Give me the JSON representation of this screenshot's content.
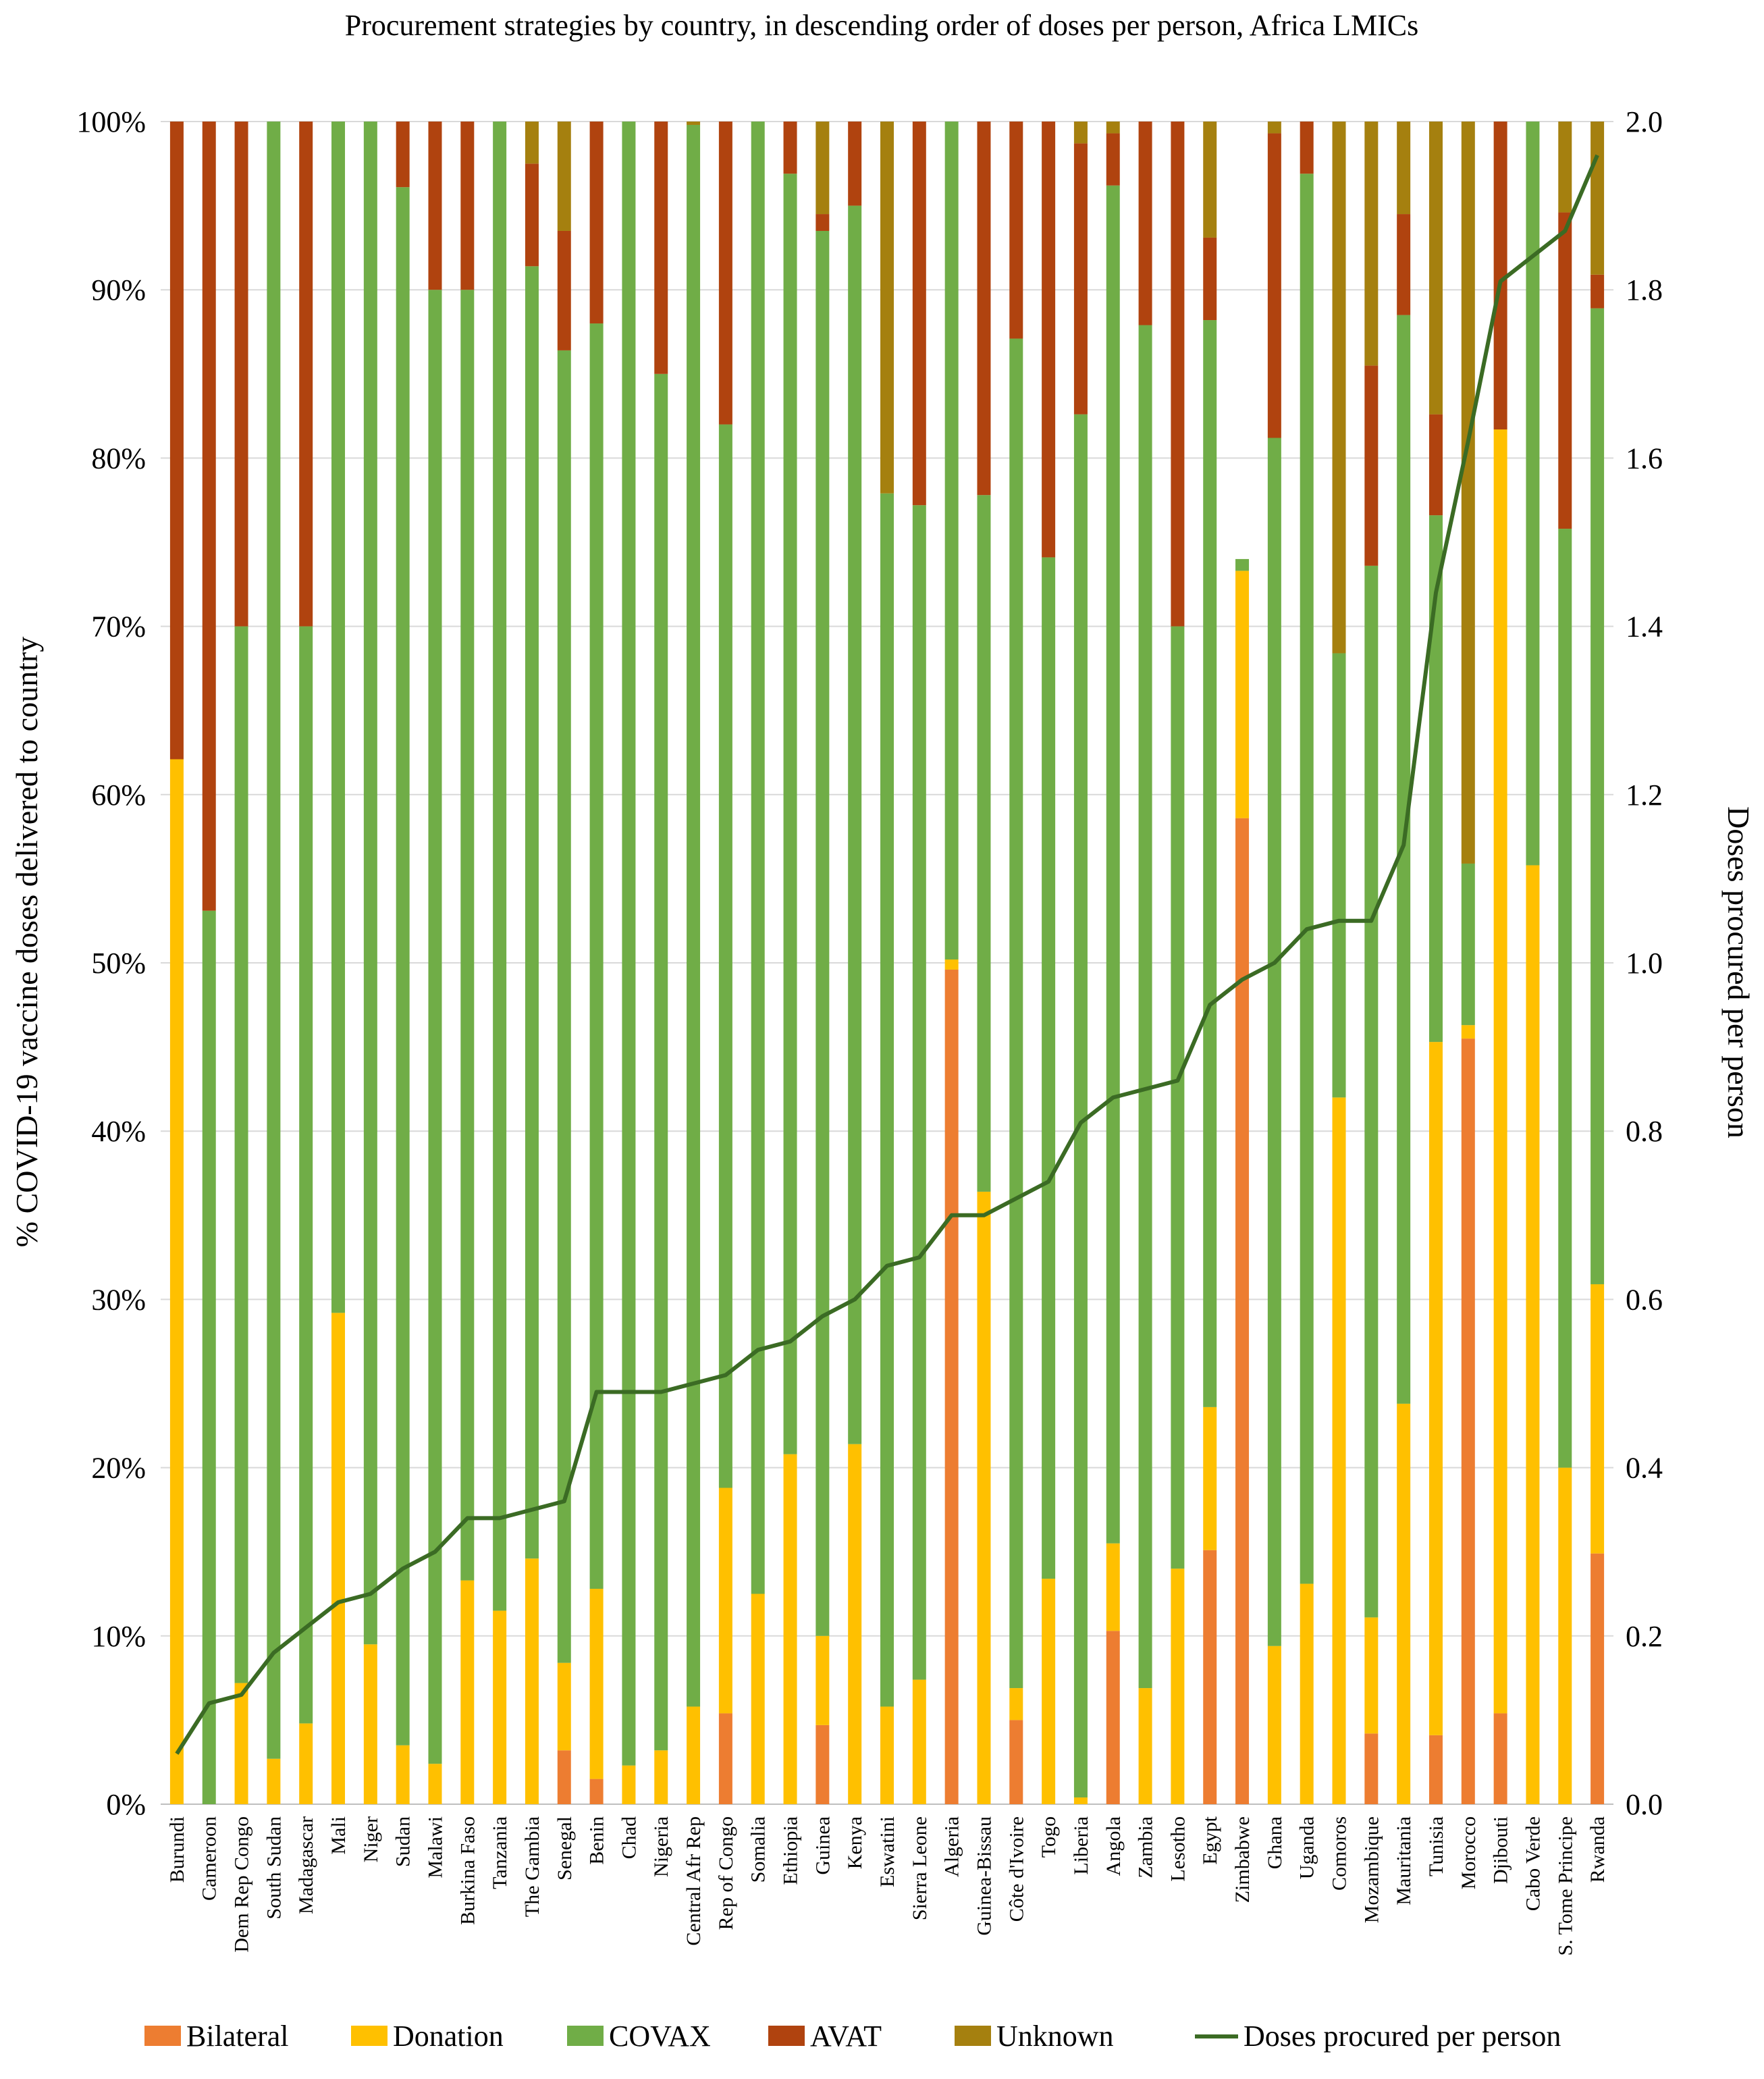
{
  "chart_data": {
    "type": "bar",
    "stacked": true,
    "normalized": true,
    "title": "Procurement strategies by country, in descending order of doses per person, Africa LMICs",
    "ylabel": "% COVID-19 vaccine doses delivered to country",
    "y2label": "Doses procured per person",
    "ylim": [
      0,
      100
    ],
    "y2lim": [
      0,
      2.0
    ],
    "yticks": [
      "0%",
      "10%",
      "20%",
      "30%",
      "40%",
      "50%",
      "60%",
      "70%",
      "80%",
      "90%",
      "100%"
    ],
    "y2ticks": [
      "0.0",
      "0.2",
      "0.4",
      "0.6",
      "0.8",
      "1.0",
      "1.2",
      "1.4",
      "1.6",
      "1.8",
      "2.0"
    ],
    "legend_position": "bottom",
    "colors": {
      "Bilateral": "#ED7D31",
      "Donation": "#FFC000",
      "COVAX": "#70AD47",
      "AVAT": "#B0430F",
      "Unknown": "#A5800F",
      "line": "#3B6B24",
      "grid": "#d9d9d9"
    },
    "categories": [
      "Burundi",
      "Cameroon",
      "Dem Rep Congo",
      "South Sudan",
      "Madagascar",
      "Mali",
      "Niger",
      "Sudan",
      "Malawi",
      "Burkina Faso",
      "Tanzania",
      "The Gambia",
      "Senegal",
      "Benin",
      "Chad",
      "Nigeria",
      "Central Afr Rep",
      "Rep of Congo",
      "Somalia",
      "Ethiopia",
      "Guinea",
      "Kenya",
      "Eswatini",
      "Sierra Leone",
      "Algeria",
      "Guinea-Bissau",
      "Côte d'Ivoire",
      "Togo",
      "Liberia",
      "Angola",
      "Zambia",
      "Lesotho",
      "Egypt",
      "Zimbabwe",
      "Ghana",
      "Uganda",
      "Comoros",
      "Mozambique",
      "Mauritania",
      "Tunisia",
      "Morocco",
      "Djibouti",
      "Cabo Verde",
      "S. Tome Principe",
      "Rwanda"
    ],
    "series": [
      {
        "name": "Bilateral",
        "values": [
          0,
          0,
          0,
          0,
          0,
          0,
          0,
          0,
          0,
          0,
          0,
          0,
          3.2,
          1.5,
          0,
          0,
          0,
          5.4,
          0,
          0,
          4.7,
          0,
          0,
          0,
          49.6,
          0,
          5.0,
          0,
          0,
          10.3,
          0,
          0,
          15.1,
          58.6,
          0,
          0,
          0,
          4.2,
          0,
          4.1,
          45.5,
          5.4,
          0,
          0,
          14.9
        ]
      },
      {
        "name": "Donation",
        "values": [
          62.1,
          0,
          7.2,
          2.7,
          4.8,
          29.2,
          9.5,
          3.5,
          2.4,
          13.3,
          11.5,
          14.6,
          5.2,
          11.3,
          2.3,
          3.2,
          5.8,
          13.4,
          12.5,
          20.8,
          5.3,
          21.4,
          5.8,
          7.4,
          0.6,
          36.4,
          1.9,
          13.4,
          0.4,
          5.2,
          6.9,
          14.0,
          8.5,
          14.7,
          9.4,
          13.1,
          42.0,
          6.9,
          23.8,
          41.2,
          0.8,
          76.3,
          55.8,
          20.0,
          16.0
        ]
      },
      {
        "name": "COVAX",
        "values": [
          0,
          53.1,
          62.8,
          97.3,
          65.2,
          70.8,
          90.5,
          92.6,
          87.6,
          76.7,
          88.5,
          76.8,
          78.0,
          75.2,
          97.7,
          81.8,
          94.0,
          63.2,
          87.5,
          76.1,
          83.5,
          73.6,
          72.1,
          69.8,
          49.8,
          41.4,
          80.2,
          60.7,
          82.2,
          80.7,
          81.0,
          56.0,
          64.6,
          0.7,
          71.8,
          83.8,
          26.4,
          62.5,
          64.7,
          31.3,
          9.6,
          0,
          44.2,
          55.8,
          58.0
        ]
      },
      {
        "name": "AVAT",
        "values": [
          37.9,
          46.9,
          30.0,
          0,
          30.0,
          0,
          0,
          3.9,
          10.0,
          10.0,
          0,
          6.1,
          7.1,
          12.0,
          0,
          15.0,
          0,
          18.0,
          0,
          3.1,
          1.0,
          5.0,
          0,
          22.8,
          0,
          22.2,
          12.9,
          25.9,
          16.1,
          3.1,
          12.1,
          30.0,
          4.9,
          0,
          18.1,
          3.1,
          0,
          11.9,
          6.0,
          6.0,
          0,
          18.3,
          0,
          18.8,
          2.0
        ]
      },
      {
        "name": "Unknown",
        "values": [
          0,
          0,
          0,
          0,
          0,
          0,
          0,
          0,
          0,
          0,
          0,
          2.5,
          6.5,
          0,
          0,
          0,
          0.2,
          0,
          0,
          0,
          5.5,
          0,
          22.1,
          0,
          0,
          0,
          0,
          0,
          1.3,
          0.7,
          0,
          0,
          6.9,
          0,
          0.7,
          0,
          31.6,
          14.5,
          5.5,
          17.4,
          44.1,
          0,
          0,
          5.4,
          9.1
        ]
      }
    ],
    "line": {
      "name": "Doses procured per person",
      "axis": "secondary",
      "values": [
        0.06,
        0.12,
        0.13,
        0.18,
        0.21,
        0.24,
        0.25,
        0.28,
        0.3,
        0.34,
        0.34,
        0.35,
        0.36,
        0.49,
        0.49,
        0.49,
        0.5,
        0.51,
        0.54,
        0.55,
        0.58,
        0.6,
        0.64,
        0.65,
        0.7,
        0.7,
        0.72,
        0.74,
        0.81,
        0.84,
        0.85,
        0.86,
        0.95,
        0.98,
        1.0,
        1.04,
        1.05,
        1.05,
        1.14,
        1.44,
        1.62,
        1.81,
        1.84,
        1.87,
        1.96
      ]
    },
    "legend": [
      "Bilateral",
      "Donation",
      "COVAX",
      "AVAT",
      "Unknown",
      "Doses procured per person"
    ]
  }
}
